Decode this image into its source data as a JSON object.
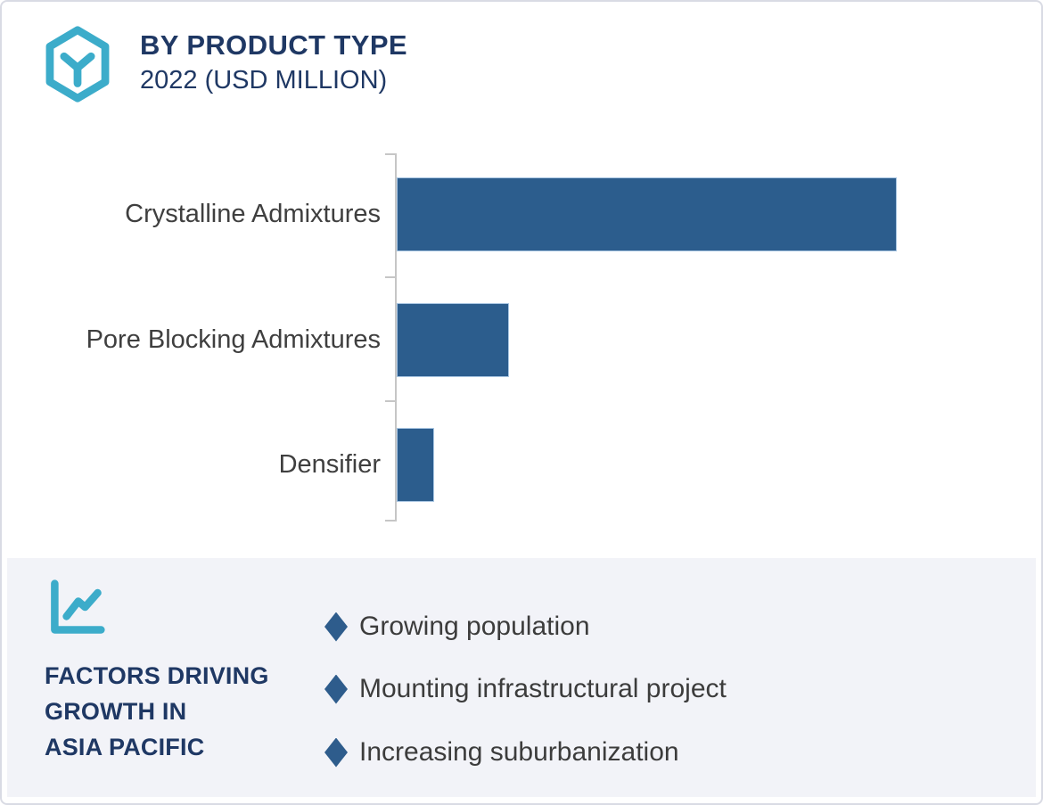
{
  "header": {
    "title": "BY PRODUCT TYPE",
    "subtitle": "2022 (USD MILLION)",
    "logo_icon": "hexagon-cube-icon"
  },
  "chart_data": {
    "type": "bar",
    "orientation": "horizontal",
    "title": "BY PRODUCT TYPE",
    "subtitle": "2022 (USD MILLION)",
    "categories": [
      "Crystalline Admixtures",
      "Pore Blocking Admixtures",
      "Densifier"
    ],
    "values": [
      100,
      22.5,
      7.5
    ],
    "value_note": "relative bar lengths as % of largest bar; no numeric axis labels are shown in the image",
    "unit": "USD Million",
    "bar_color": "#2c5d8d",
    "axis": {
      "numeric_labels": false,
      "tick_count": 4,
      "baseline": "left vertical axis"
    },
    "legend": false,
    "grid": false
  },
  "factors_panel": {
    "icon": "line-chart-icon",
    "heading_lines": [
      "FACTORS DRIVING",
      "GROWTH IN",
      "ASIA PACIFIC"
    ],
    "bullet_icon": "diamond-bullet",
    "items": [
      "Growing population",
      "Mounting infrastructural project",
      "Increasing suburbanization"
    ]
  },
  "colors": {
    "accent_teal": "#3cacca",
    "navy": "#1f3864",
    "bar_fill": "#2c5d8d",
    "bar_border": "#a9c6e2",
    "panel_bg": "#f2f3f8",
    "text_gray": "#3f3f3f",
    "axis_gray": "#c6c6c6"
  }
}
